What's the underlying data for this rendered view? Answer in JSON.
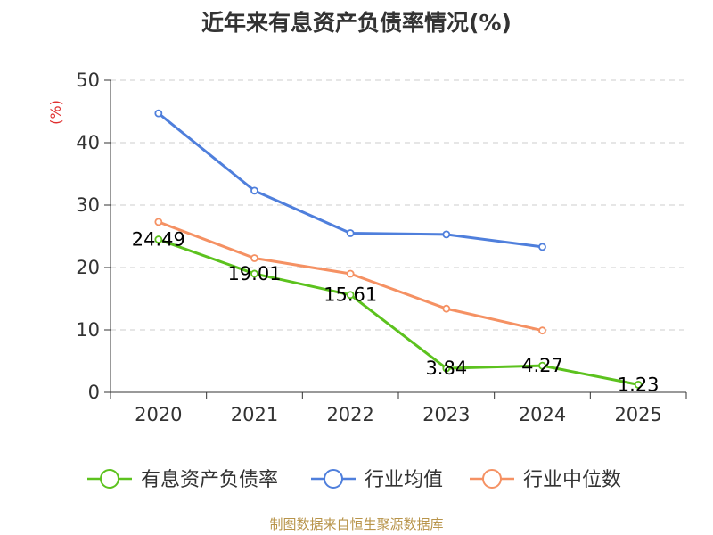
{
  "chart_data": {
    "type": "line",
    "title": "近年来有息资产负债率情况(%)",
    "ylabel": "(%)",
    "xlabel": "",
    "categories": [
      "2020",
      "2021",
      "2022",
      "2023",
      "2024",
      "2025"
    ],
    "yticks": [
      0,
      10,
      20,
      30,
      40,
      50
    ],
    "ylim": [
      0,
      50
    ],
    "grid": true,
    "legend_position": "bottom",
    "series": [
      {
        "name": "有息资产负债率",
        "color": "#5cc21e",
        "values": [
          24.49,
          19.01,
          15.61,
          3.84,
          4.27,
          1.23
        ],
        "labels": [
          "24.49",
          "19.01",
          "15.61",
          "3.84",
          "4.27",
          "1.23"
        ]
      },
      {
        "name": "行业均值",
        "color": "#4f7fdc",
        "values": [
          44.7,
          32.3,
          25.5,
          25.3,
          23.3,
          null
        ]
      },
      {
        "name": "行业中位数",
        "color": "#f59163",
        "values": [
          27.3,
          21.5,
          19.0,
          13.4,
          9.9,
          null
        ]
      }
    ]
  },
  "source": "制图数据来自恒生聚源数据库"
}
